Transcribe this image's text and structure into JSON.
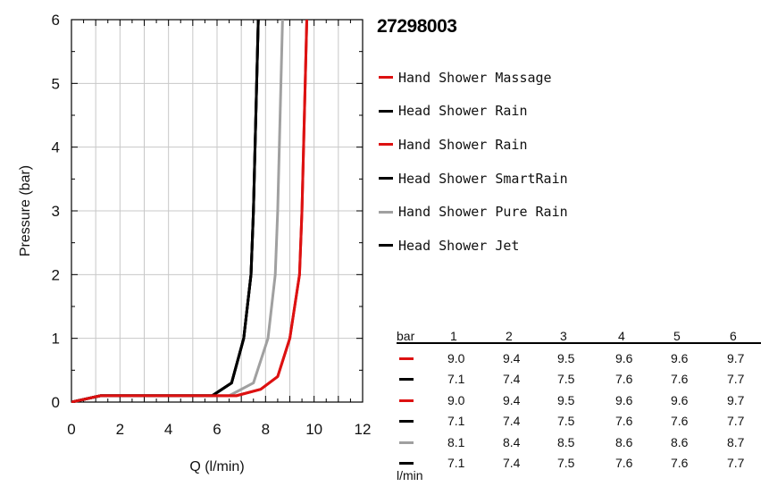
{
  "chart_data": {
    "type": "line",
    "title": "27298003",
    "xlabel": "Q (l/min)",
    "ylabel": "Pressure (bar)",
    "xlim": [
      0,
      12
    ],
    "ylim": [
      0,
      6
    ],
    "xticks": [
      "0",
      "2",
      "4",
      "6",
      "8",
      "10",
      "12"
    ],
    "yticks": [
      "0",
      "1",
      "2",
      "3",
      "4",
      "5",
      "6"
    ],
    "grid": true,
    "legend_position": "right",
    "series": [
      {
        "name": "Hand Shower Massage",
        "color": "#dd1111",
        "x": [
          0,
          1.2,
          6.8,
          7.8,
          8.5,
          9.0,
          9.4,
          9.5,
          9.6,
          9.7
        ],
        "y": [
          0,
          0.1,
          0.1,
          0.2,
          0.4,
          1,
          2,
          3,
          4.5,
          6
        ]
      },
      {
        "name": "Head Shower Rain",
        "color": "#000000",
        "x": [
          0,
          1.2,
          5.8,
          6.6,
          7.1,
          7.4,
          7.5,
          7.6,
          7.7
        ],
        "y": [
          0,
          0.1,
          0.1,
          0.3,
          1,
          2,
          3,
          4.5,
          6
        ]
      },
      {
        "name": "Hand Shower Rain",
        "color": "#dd1111",
        "x": [
          0,
          1.2,
          6.8,
          7.8,
          8.5,
          9.0,
          9.4,
          9.5,
          9.6,
          9.7
        ],
        "y": [
          0,
          0.1,
          0.1,
          0.2,
          0.4,
          1,
          2,
          3,
          4.5,
          6
        ]
      },
      {
        "name": "Head Shower SmartRain",
        "color": "#000000",
        "x": [
          0,
          1.2,
          5.8,
          6.6,
          7.1,
          7.4,
          7.5,
          7.6,
          7.7
        ],
        "y": [
          0,
          0.1,
          0.1,
          0.3,
          1,
          2,
          3,
          4.5,
          6
        ]
      },
      {
        "name": "Hand Shower Pure Rain",
        "color": "#a0a0a0",
        "x": [
          0,
          1.2,
          6.5,
          7.5,
          8.1,
          8.4,
          8.5,
          8.6,
          8.7
        ],
        "y": [
          0,
          0.1,
          0.1,
          0.3,
          1,
          2,
          3,
          4.5,
          6
        ]
      },
      {
        "name": "Head Shower Jet",
        "color": "#000000",
        "x": [
          0,
          1.2,
          5.8,
          6.6,
          7.1,
          7.4,
          7.5,
          7.6,
          7.7
        ],
        "y": [
          0,
          0.1,
          0.1,
          0.3,
          1,
          2,
          3,
          4.5,
          6
        ]
      }
    ],
    "table": {
      "row_label_header": "bar",
      "unit_label": "l/min",
      "columns": [
        "1",
        "2",
        "3",
        "4",
        "5",
        "6"
      ],
      "rows": [
        {
          "color": "#dd1111",
          "values": [
            "9.0",
            "9.4",
            "9.5",
            "9.6",
            "9.6",
            "9.7"
          ]
        },
        {
          "color": "#000000",
          "values": [
            "7.1",
            "7.4",
            "7.5",
            "7.6",
            "7.6",
            "7.7"
          ]
        },
        {
          "color": "#dd1111",
          "values": [
            "9.0",
            "9.4",
            "9.5",
            "9.6",
            "9.6",
            "9.7"
          ]
        },
        {
          "color": "#000000",
          "values": [
            "7.1",
            "7.4",
            "7.5",
            "7.6",
            "7.6",
            "7.7"
          ]
        },
        {
          "color": "#a0a0a0",
          "values": [
            "8.1",
            "8.4",
            "8.5",
            "8.6",
            "8.6",
            "8.7"
          ]
        },
        {
          "color": "#000000",
          "values": [
            "7.1",
            "7.4",
            "7.5",
            "7.6",
            "7.6",
            "7.7"
          ]
        }
      ]
    }
  }
}
